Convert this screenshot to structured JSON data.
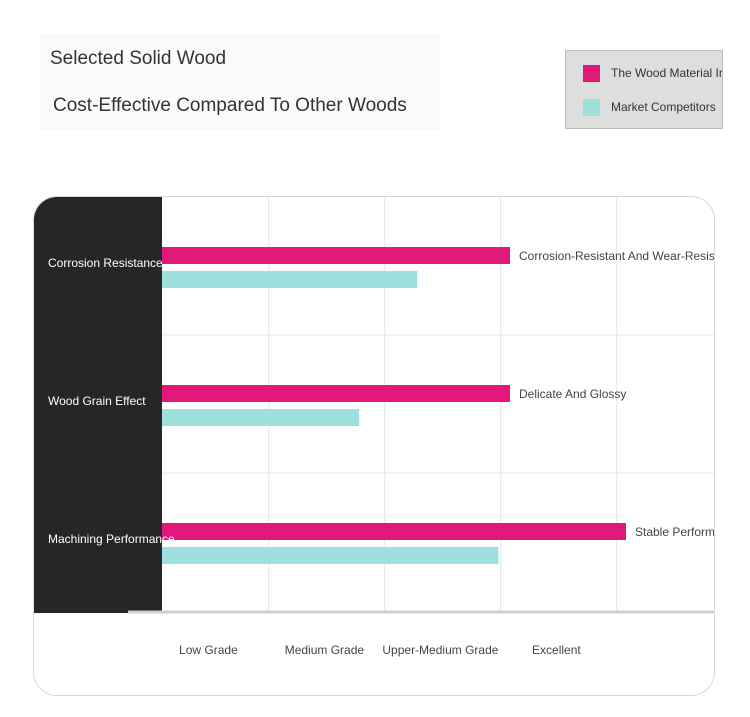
{
  "chart_data": {
    "type": "bar",
    "orientation": "horizontal",
    "title": "Selected Solid Wood",
    "subtitle": "Cost-Effective Compared To Other Woods",
    "categories": [
      "Corrosion Resistance",
      "Wood Grain Effect",
      "Machining Performance"
    ],
    "series": [
      {
        "name": "The Wood Material In This",
        "color": "#e0187a",
        "values": [
          3.0,
          3.0,
          4.0
        ],
        "data_labels": [
          "Corrosion-Resistant And Wear-Resistant",
          "Delicate And Glossy",
          "Stable Performance"
        ]
      },
      {
        "name": "Market Competitors",
        "color": "#9ee0dd",
        "values": [
          2.2,
          1.7,
          2.9
        ]
      }
    ],
    "x_ticks": [
      "Low Grade",
      "Medium Grade",
      "Upper-Medium Grade",
      "Excellent"
    ],
    "x_range": [
      0,
      4.5
    ],
    "grid": true,
    "legend_position": "top-right"
  }
}
